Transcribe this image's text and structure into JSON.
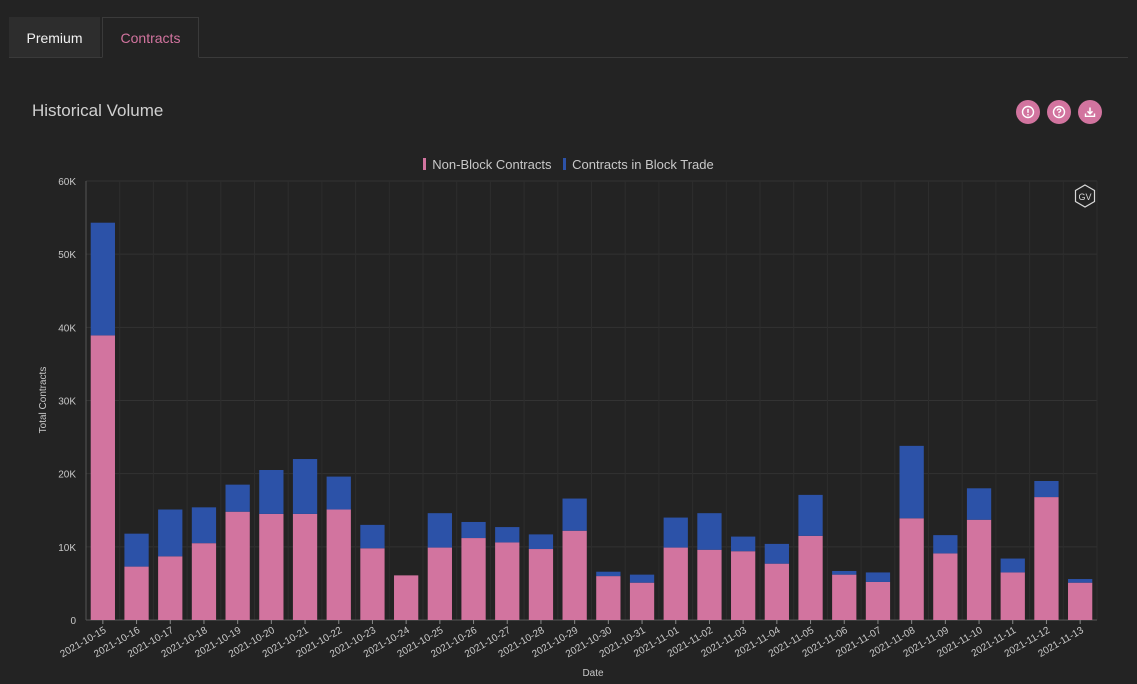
{
  "tabs": [
    {
      "label": "Premium",
      "active": false
    },
    {
      "label": "Contracts",
      "active": true
    }
  ],
  "panel": {
    "title": "Historical Volume",
    "icons": [
      "alert-icon",
      "help-icon",
      "download-icon"
    ]
  },
  "colors": {
    "accent": "#d2749f",
    "non_block": "#d2749f",
    "block": "#2c52a8",
    "background": "#232323"
  },
  "watermark": "GV",
  "chart_data": {
    "type": "bar",
    "stacked": true,
    "xlabel": "Date",
    "ylabel": "Total Contracts",
    "ylim": [
      0,
      60000
    ],
    "yticks": [
      0,
      10000,
      20000,
      30000,
      40000,
      50000,
      60000
    ],
    "ytick_labels": [
      "0",
      "10K",
      "20K",
      "30K",
      "40K",
      "50K",
      "60K"
    ],
    "legend_position": "top-center",
    "grid": true,
    "categories": [
      "2021-10-15",
      "2021-10-16",
      "2021-10-17",
      "2021-10-18",
      "2021-10-19",
      "2021-10-20",
      "2021-10-21",
      "2021-10-22",
      "2021-10-23",
      "2021-10-24",
      "2021-10-25",
      "2021-10-26",
      "2021-10-27",
      "2021-10-28",
      "2021-10-29",
      "2021-10-30",
      "2021-10-31",
      "2021-11-01",
      "2021-11-02",
      "2021-11-03",
      "2021-11-04",
      "2021-11-05",
      "2021-11-06",
      "2021-11-07",
      "2021-11-08",
      "2021-11-09",
      "2021-11-10",
      "2021-11-11",
      "2021-11-12",
      "2021-11-13"
    ],
    "series": [
      {
        "name": "Non-Block Contracts",
        "values": [
          38900,
          7300,
          8700,
          10500,
          14800,
          14500,
          14500,
          15100,
          9800,
          6100,
          9900,
          11200,
          10600,
          9700,
          12200,
          6000,
          5100,
          9900,
          9600,
          9400,
          7700,
          11500,
          6200,
          5200,
          13900,
          9100,
          13700,
          6500,
          16800,
          5100
        ]
      },
      {
        "name": "Contracts in Block Trade",
        "values": [
          15400,
          4500,
          6400,
          4900,
          3700,
          6000,
          7500,
          4500,
          3200,
          0,
          4700,
          2200,
          2100,
          2000,
          4400,
          600,
          1100,
          4100,
          5000,
          2000,
          2700,
          5600,
          500,
          1300,
          9900,
          2500,
          4300,
          1900,
          2200,
          500
        ]
      }
    ]
  }
}
